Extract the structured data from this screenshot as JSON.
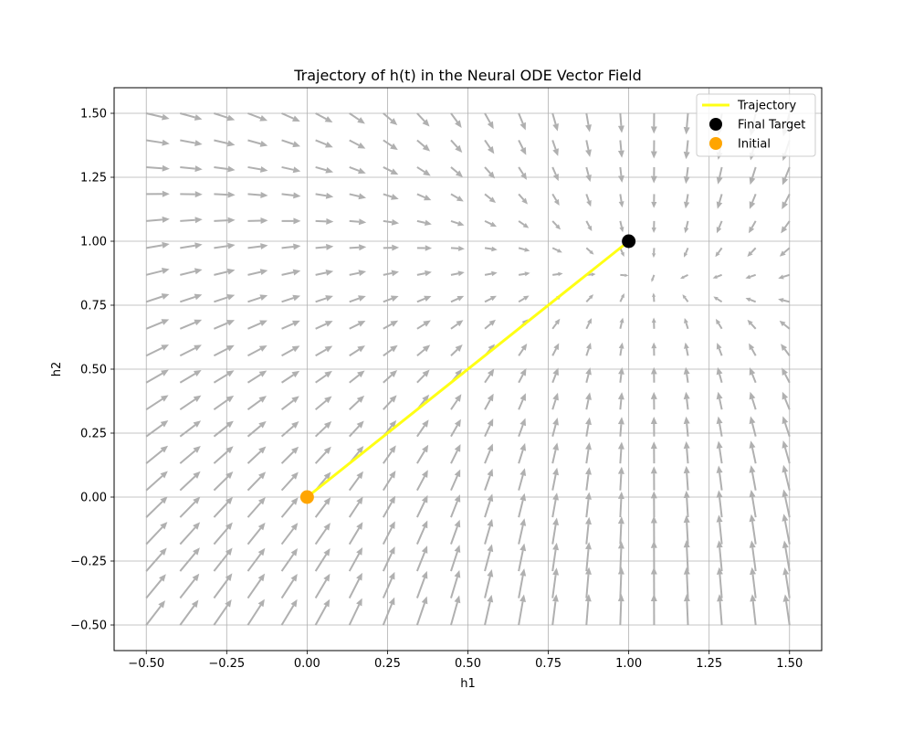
{
  "chart_data": {
    "type": "quiver",
    "title": "Trajectory of h(t) in the Neural ODE Vector Field",
    "xlabel": "h1",
    "ylabel": "h2",
    "xlim": [
      -0.6,
      1.6
    ],
    "ylim": [
      -0.6,
      1.6
    ],
    "grid": true,
    "xticks": [
      -0.5,
      -0.25,
      0.0,
      0.25,
      0.5,
      0.75,
      1.0,
      1.25,
      1.5
    ],
    "yticks": [
      -0.5,
      -0.25,
      0.0,
      0.25,
      0.5,
      0.75,
      1.0,
      1.25,
      1.5
    ],
    "xtick_labels": [
      "−0.50",
      "−0.25",
      "0.00",
      "0.25",
      "0.50",
      "0.75",
      "1.00",
      "1.25",
      "1.50"
    ],
    "ytick_labels": [
      "−0.50",
      "−0.25",
      "0.00",
      "0.25",
      "0.50",
      "0.75",
      "1.00",
      "1.25",
      "1.50"
    ],
    "vector_field": {
      "x_range": [
        -0.5,
        1.5
      ],
      "y_range": [
        -0.5,
        1.5
      ],
      "grid_count": 20,
      "color": "#b0b0b0",
      "description_sink": [
        1.0,
        1.0
      ]
    },
    "series": [
      {
        "name": "Trajectory",
        "kind": "line",
        "color": "#ffff14",
        "x": [
          0.0,
          1.0
        ],
        "y": [
          0.0,
          1.0
        ]
      },
      {
        "name": "Final Target",
        "kind": "point",
        "color": "#000000",
        "x": [
          1.0
        ],
        "y": [
          1.0
        ]
      },
      {
        "name": "Initial",
        "kind": "point",
        "color": "#ffa500",
        "x": [
          0.0
        ],
        "y": [
          0.0
        ]
      }
    ],
    "legend": {
      "position": "top-right",
      "entries": [
        {
          "label": "Trajectory",
          "marker": "line",
          "color": "#ffff14"
        },
        {
          "label": "Final Target",
          "marker": "circle",
          "color": "#000000"
        },
        {
          "label": "Initial",
          "marker": "circle",
          "color": "#ffa500"
        }
      ]
    }
  }
}
